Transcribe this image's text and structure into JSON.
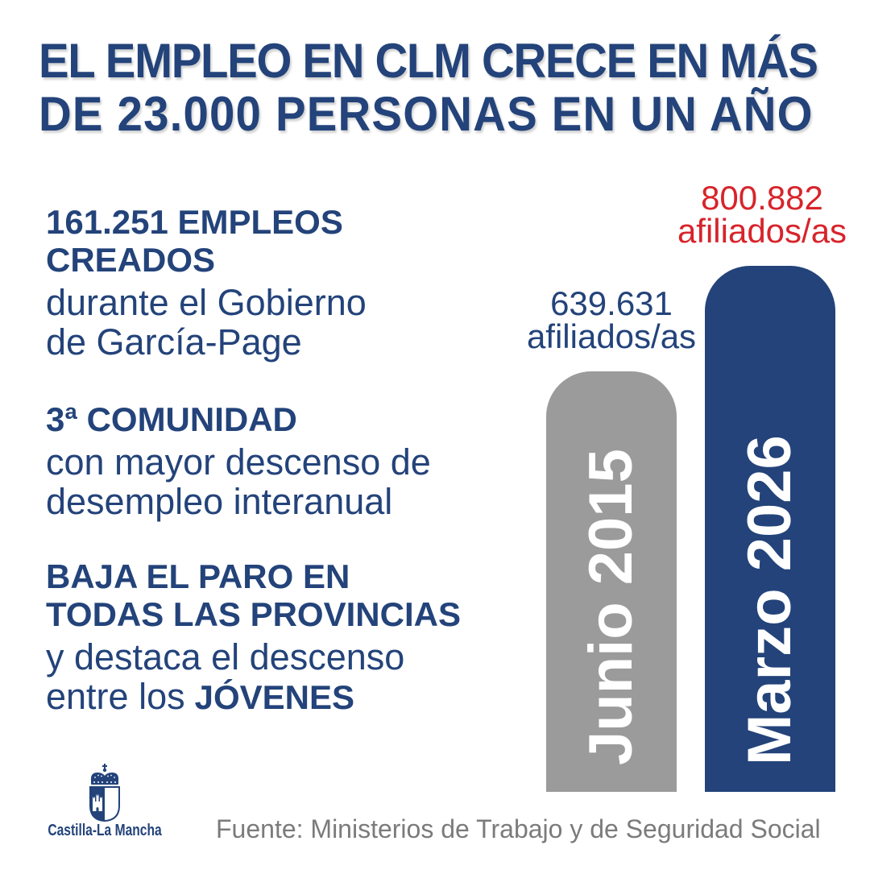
{
  "header": {
    "title_lines": [
      "EL EMPLEO EN CLM CRECE EN MÁS",
      "DE 23.000 PERSONAS EN UN AÑO"
    ]
  },
  "highlights": [
    {
      "headline": [
        "161.251 EMPLEOS",
        "CREADOS"
      ],
      "detail": [
        "durante el Gobierno",
        "de García-Page"
      ]
    },
    {
      "headline": [
        "3ª COMUNIDAD"
      ],
      "detail": [
        "con mayor descenso de",
        "desempleo interanual"
      ]
    },
    {
      "headline": [
        "BAJA EL PARO EN",
        "TODAS LAS PROVINCIAS"
      ],
      "detail": [
        "y destaca el descenso"
      ],
      "detail_end": {
        "text": "entre los",
        "emphasis": "JÓVENES"
      }
    }
  ],
  "chart_data": {
    "type": "bar",
    "categories": [
      "Junio 2015",
      "Marzo 2026"
    ],
    "values": [
      639631,
      800882
    ],
    "value_labels": [
      "639.631",
      "800.882"
    ],
    "value_unit": "afiliados/as",
    "bar_colors": [
      "#9b9b9b",
      "#23437a"
    ],
    "value_label_colors": [
      "#23437a",
      "#d7242b"
    ],
    "grid": false
  },
  "footer": {
    "logo_icon": "coat-of-arms-icon",
    "logo_text": "Castilla-La Mancha",
    "source": "Fuente: Ministerios de Trabajo y de Seguridad Social"
  },
  "colors": {
    "primary": "#23437a",
    "accent": "#d7242b",
    "muted": "#7b7b7b",
    "background": "#ffffff"
  }
}
